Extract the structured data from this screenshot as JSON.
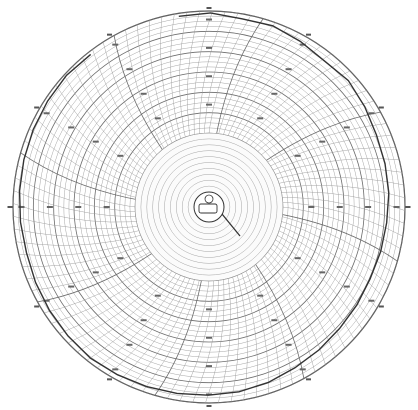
{
  "chart_data": {
    "type": "polar-recorder-chart",
    "title": "",
    "grid": true,
    "angular_divisions": 96,
    "angular_major_every": 12,
    "radial_ring_count": 24,
    "trace": {
      "name": "",
      "relative_radius": [
        0.985,
        0.99,
        0.975,
        0.98,
        0.965,
        0.95,
        0.96,
        0.945,
        0.93,
        0.925,
        0.92,
        0.91,
        0.905,
        0.9,
        0.905,
        0.91,
        0.92,
        0.93,
        0.945,
        0.955,
        0.96,
        0.965,
        0.97,
        0.975,
        0.98,
        0.975,
        0.97,
        0.965,
        0.96,
        0.965,
        0.97,
        0.975,
        0.98,
        0.985,
        0.99,
        0.985
      ]
    }
  }
}
